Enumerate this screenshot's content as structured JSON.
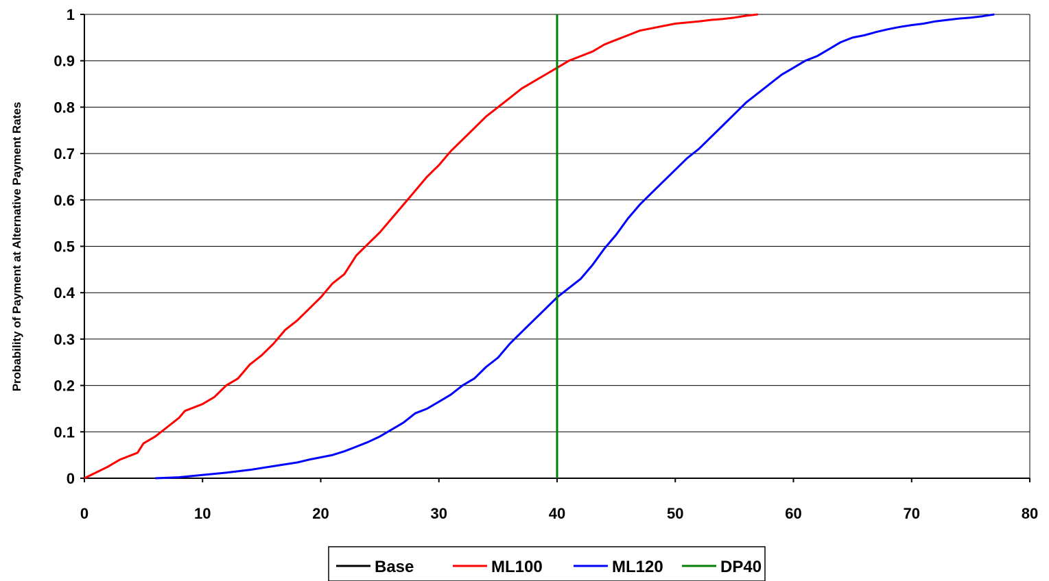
{
  "chart_data": {
    "type": "line",
    "title": "",
    "xlabel": "",
    "ylabel": "Probability of Payment at Alternative Payment Rates",
    "xlim": [
      0,
      80
    ],
    "ylim": [
      0,
      1
    ],
    "x_ticks": [
      "0",
      "10",
      "20",
      "30",
      "40",
      "50",
      "60",
      "70",
      "80"
    ],
    "y_ticks": [
      "0",
      "0.1",
      "0.2",
      "0.3",
      "0.4",
      "0.5",
      "0.6",
      "0.7",
      "0.8",
      "0.9",
      "1"
    ],
    "grid": "horizontal",
    "legend_position": "bottom",
    "series": [
      {
        "name": "Base",
        "color": "#000000",
        "x": [],
        "y": []
      },
      {
        "name": "ML100",
        "color": "#ff0000",
        "x": [
          0,
          2,
          3,
          4.5,
          5,
          6,
          7,
          8,
          8.5,
          10,
          11,
          12,
          13,
          14,
          15,
          16,
          17,
          18,
          19,
          20,
          21,
          22,
          23,
          24,
          25,
          26,
          27,
          28,
          29,
          30,
          31,
          32,
          33,
          34,
          35,
          36,
          37,
          38,
          39,
          40,
          41,
          42,
          43,
          44,
          45,
          46,
          47,
          48,
          49,
          50,
          52,
          53,
          54,
          55,
          56,
          57
        ],
        "y": [
          0,
          0.025,
          0.04,
          0.055,
          0.075,
          0.09,
          0.11,
          0.13,
          0.145,
          0.16,
          0.175,
          0.2,
          0.215,
          0.245,
          0.265,
          0.29,
          0.32,
          0.34,
          0.365,
          0.39,
          0.42,
          0.44,
          0.48,
          0.505,
          0.53,
          0.56,
          0.59,
          0.62,
          0.65,
          0.675,
          0.705,
          0.73,
          0.755,
          0.78,
          0.8,
          0.82,
          0.84,
          0.855,
          0.87,
          0.885,
          0.9,
          0.91,
          0.92,
          0.935,
          0.945,
          0.955,
          0.965,
          0.97,
          0.975,
          0.98,
          0.985,
          0.988,
          0.99,
          0.993,
          0.997,
          1.0
        ]
      },
      {
        "name": "ML120",
        "color": "#0000ff",
        "x": [
          6,
          8,
          10,
          12,
          14,
          16,
          18,
          19,
          20,
          21,
          22,
          23,
          24,
          25,
          26,
          27,
          28,
          29,
          30,
          31,
          32,
          33,
          34,
          35,
          36,
          37,
          38,
          39,
          40,
          41,
          42,
          43,
          44,
          45,
          46,
          47,
          48,
          49,
          50,
          51,
          52,
          53,
          54,
          55,
          56,
          57,
          58,
          59,
          60,
          61,
          62,
          63,
          64,
          65,
          66,
          67,
          68,
          69,
          70,
          71,
          72,
          73,
          74,
          75,
          76,
          77
        ],
        "y": [
          0,
          0.002,
          0.007,
          0.012,
          0.018,
          0.026,
          0.034,
          0.04,
          0.045,
          0.05,
          0.058,
          0.068,
          0.078,
          0.09,
          0.105,
          0.12,
          0.14,
          0.15,
          0.165,
          0.18,
          0.2,
          0.215,
          0.24,
          0.26,
          0.29,
          0.315,
          0.34,
          0.365,
          0.39,
          0.41,
          0.43,
          0.46,
          0.495,
          0.525,
          0.56,
          0.59,
          0.615,
          0.64,
          0.665,
          0.69,
          0.71,
          0.735,
          0.76,
          0.785,
          0.81,
          0.83,
          0.85,
          0.87,
          0.885,
          0.9,
          0.91,
          0.925,
          0.94,
          0.95,
          0.955,
          0.962,
          0.968,
          0.973,
          0.977,
          0.98,
          0.985,
          0.988,
          0.991,
          0.993,
          0.996,
          1.0
        ]
      },
      {
        "name": "DP40",
        "color": "#008000",
        "x": [
          40,
          40
        ],
        "y": [
          0,
          1
        ]
      }
    ]
  }
}
